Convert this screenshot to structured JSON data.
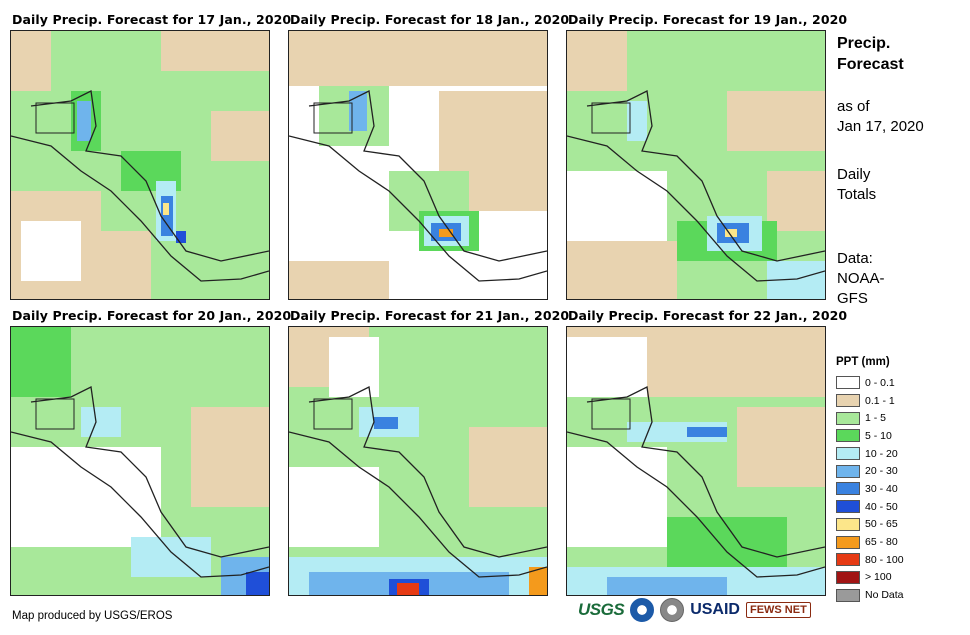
{
  "panels": [
    {
      "title": "Daily Precip. Forecast for 17 Jan., 2020"
    },
    {
      "title": "Daily Precip. Forecast for 18 Jan., 2020"
    },
    {
      "title": "Daily Precip. Forecast for 19 Jan., 2020"
    },
    {
      "title": "Daily Precip. Forecast for 20 Jan., 2020"
    },
    {
      "title": "Daily Precip. Forecast for 21 Jan., 2020"
    },
    {
      "title": "Daily Precip. Forecast for 22 Jan., 2020"
    }
  ],
  "side": {
    "title_line1": "Precip.",
    "title_line2": "Forecast",
    "asof_line1": "as of",
    "asof_line2": "Jan 17, 2020",
    "totals_line1": "Daily",
    "totals_line2": "Totals",
    "data_line1": "Data:",
    "data_line2": "NOAA-",
    "data_line3": "GFS"
  },
  "legend": {
    "title": "PPT (mm)",
    "items": [
      {
        "label": "0 - 0.1",
        "color": "#ffffff"
      },
      {
        "label": "0.1 - 1",
        "color": "#e8d3b0"
      },
      {
        "label": "1 - 5",
        "color": "#a8e89a"
      },
      {
        "label": "5 - 10",
        "color": "#5bd85b"
      },
      {
        "label": "10 - 20",
        "color": "#b4ecf4"
      },
      {
        "label": "20 - 30",
        "color": "#6fb4ec"
      },
      {
        "label": "30 - 40",
        "color": "#3a82e0"
      },
      {
        "label": "40 - 50",
        "color": "#1f4fd8"
      },
      {
        "label": "50 - 65",
        "color": "#fce68a"
      },
      {
        "label": "65 - 80",
        "color": "#f49a1c"
      },
      {
        "label": "80 - 100",
        "color": "#e63a14"
      },
      {
        "label": "> 100",
        "color": "#a11414"
      },
      {
        "label": "No Data",
        "color": "#9a9a9a"
      }
    ]
  },
  "credit": "Map produced by USGS/EROS",
  "logos": {
    "usgs": "USGS",
    "usaid": "USAID",
    "fews": "FEWS NET"
  }
}
